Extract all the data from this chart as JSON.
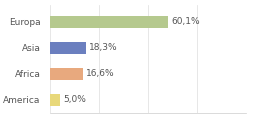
{
  "categories": [
    "Europa",
    "Asia",
    "Africa",
    "America"
  ],
  "values": [
    60.1,
    18.3,
    16.6,
    5.0
  ],
  "labels": [
    "60,1%",
    "18,3%",
    "16,6%",
    "5,0%"
  ],
  "colors": [
    "#b5c98e",
    "#6b7fbf",
    "#e8a97e",
    "#e8d87a"
  ],
  "xlim": [
    0,
    100
  ],
  "background_color": "#ffffff",
  "label_fontsize": 6.5,
  "tick_fontsize": 6.5,
  "bar_height": 0.45
}
